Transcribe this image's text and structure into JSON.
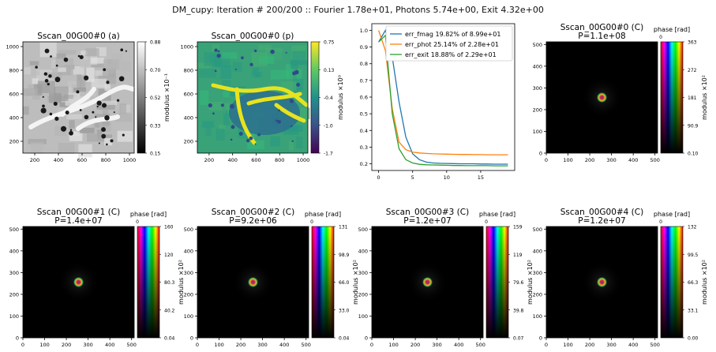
{
  "suptitle": "DM_cupy: Iteration # 200/200 :: Fourier 1.78e+01, Photons 5.74e+00, Exit 4.32e+00",
  "chart_data": [
    {
      "type": "heatmap",
      "title": "Sscan_00G00#0 (a)",
      "xticks": [
        "200",
        "400",
        "600",
        "800",
        "1000"
      ],
      "yticks": [
        "200",
        "400",
        "600",
        "800",
        "1000"
      ],
      "xlim": [
        100,
        1040
      ],
      "ylim": [
        100,
        1040
      ],
      "colormap": "gray",
      "colorbar_label": "modulus ×10⁻¹",
      "colorbar_ticks": [
        "0.88",
        "0.70",
        "0.52",
        "0.33",
        "0.15"
      ],
      "colorbar_range": [
        0.15,
        0.88
      ]
    },
    {
      "type": "heatmap",
      "title": "Sscan_00G00#0 (p)",
      "xticks": [
        "200",
        "400",
        "600",
        "800",
        "1000"
      ],
      "yticks": [
        "200",
        "400",
        "600",
        "800",
        "1000"
      ],
      "xlim": [
        100,
        1040
      ],
      "ylim": [
        100,
        1040
      ],
      "colormap": "viridis",
      "colorbar_label": "modulus ×10⁰",
      "colorbar_ticks": [
        "0.75",
        "0.13",
        "-0.4",
        "-1.0",
        "-1.7"
      ],
      "colorbar_range": [
        -1.7,
        0.75
      ]
    },
    {
      "type": "line",
      "x": [
        0,
        1,
        2,
        3,
        4,
        5,
        6,
        7,
        8,
        9,
        10,
        11,
        12,
        13,
        14,
        15,
        16,
        17,
        18,
        19
      ],
      "xticks": [
        "0",
        "5",
        "10",
        "15"
      ],
      "yticks": [
        "0.2",
        "0.3",
        "0.4",
        "0.5",
        "0.6",
        "0.7",
        "0.8",
        "0.9",
        "1.0"
      ],
      "xlim": [
        -1,
        20
      ],
      "ylim": [
        0.16,
        1.04
      ],
      "legend_position": "top-right",
      "series": [
        {
          "name": "err_fmag 19.82% of 8.99e+01",
          "color": "#1f77b4",
          "values": [
            0.93,
            1.0,
            0.84,
            0.57,
            0.36,
            0.26,
            0.225,
            0.21,
            0.205,
            0.203,
            0.202,
            0.201,
            0.2,
            0.2,
            0.2,
            0.199,
            0.199,
            0.198,
            0.198,
            0.198
          ]
        },
        {
          "name": "err_phot 25.14% of 2.28e+01",
          "color": "#ff7f0e",
          "values": [
            1.0,
            0.88,
            0.53,
            0.33,
            0.285,
            0.27,
            0.265,
            0.262,
            0.26,
            0.259,
            0.258,
            0.257,
            0.256,
            0.256,
            0.255,
            0.255,
            0.254,
            0.254,
            0.254,
            0.254
          ]
        },
        {
          "name": "err_exit 18.88% of 2.29e+01",
          "color": "#2ca02c",
          "values": [
            0.93,
            0.97,
            0.5,
            0.29,
            0.225,
            0.205,
            0.197,
            0.194,
            0.193,
            0.192,
            0.191,
            0.19,
            0.19,
            0.189,
            0.189,
            0.189,
            0.189,
            0.188,
            0.188,
            0.188
          ]
        }
      ]
    },
    {
      "type": "heatmap",
      "title": "Sscan_00G00#0 (C)",
      "subtitle": "P=1.1e+08",
      "xticks": [
        "0",
        "100",
        "200",
        "300",
        "400",
        "500"
      ],
      "yticks": [
        "0",
        "100",
        "200",
        "300",
        "400",
        "500"
      ],
      "xlim": [
        0,
        512
      ],
      "ylim": [
        0,
        512
      ],
      "colorbar_label": "modulus ×10²",
      "colorbar_top_title": "phase [rad]",
      "colorbar_top_tick": "0",
      "colorbar_ticks": [
        "363",
        "272",
        "181",
        "90.9",
        "0.10"
      ],
      "colorbar_range": [
        0.1,
        363
      ]
    },
    {
      "type": "heatmap",
      "title": "Sscan_00G00#1 (C)",
      "subtitle": "P=1.4e+07",
      "xticks": [
        "0",
        "100",
        "200",
        "300",
        "400",
        "500"
      ],
      "yticks": [
        "0",
        "100",
        "200",
        "300",
        "400",
        "500"
      ],
      "xlim": [
        0,
        512
      ],
      "ylim": [
        0,
        512
      ],
      "colorbar_label": "modulus ×10²",
      "colorbar_top_title": "phase [rad]",
      "colorbar_top_tick": "0",
      "colorbar_ticks": [
        "160",
        "120",
        "80.3",
        "40.2",
        "0.04"
      ],
      "colorbar_range": [
        0.04,
        160
      ]
    },
    {
      "type": "heatmap",
      "title": "Sscan_00G00#2 (C)",
      "subtitle": "P=9.2e+06",
      "xticks": [
        "0",
        "100",
        "200",
        "300",
        "400",
        "500"
      ],
      "yticks": [
        "0",
        "100",
        "200",
        "300",
        "400",
        "500"
      ],
      "xlim": [
        0,
        512
      ],
      "ylim": [
        0,
        512
      ],
      "colorbar_label": "modulus ×10²",
      "colorbar_top_title": "phase [rad]",
      "colorbar_top_tick": "0",
      "colorbar_ticks": [
        "131",
        "98.9",
        "66.0",
        "33.0",
        "0.04"
      ],
      "colorbar_range": [
        0.04,
        131
      ]
    },
    {
      "type": "heatmap",
      "title": "Sscan_00G00#3 (C)",
      "subtitle": "P=1.2e+07",
      "xticks": [
        "0",
        "100",
        "200",
        "300",
        "400",
        "500"
      ],
      "yticks": [
        "0",
        "100",
        "200",
        "300",
        "400",
        "500"
      ],
      "xlim": [
        0,
        512
      ],
      "ylim": [
        0,
        512
      ],
      "colorbar_label": "modulus ×10²",
      "colorbar_top_title": "phase [rad]",
      "colorbar_top_tick": "0",
      "colorbar_ticks": [
        "159",
        "119",
        "79.6",
        "39.8",
        "0.07"
      ],
      "colorbar_range": [
        0.07,
        159
      ]
    },
    {
      "type": "heatmap",
      "title": "Sscan_00G00#4 (C)",
      "subtitle": "P=1.2e+07",
      "xticks": [
        "0",
        "100",
        "200",
        "300",
        "400",
        "500"
      ],
      "yticks": [
        "0",
        "100",
        "200",
        "300",
        "400",
        "500"
      ],
      "xlim": [
        0,
        512
      ],
      "ylim": [
        0,
        512
      ],
      "colorbar_label": "modulus ×10²",
      "colorbar_top_title": "phase [rad]",
      "colorbar_top_tick": "0",
      "colorbar_ticks": [
        "132",
        "99.5",
        "66.3",
        "33.1",
        "0.00"
      ],
      "colorbar_range": [
        0.0,
        132
      ]
    }
  ]
}
